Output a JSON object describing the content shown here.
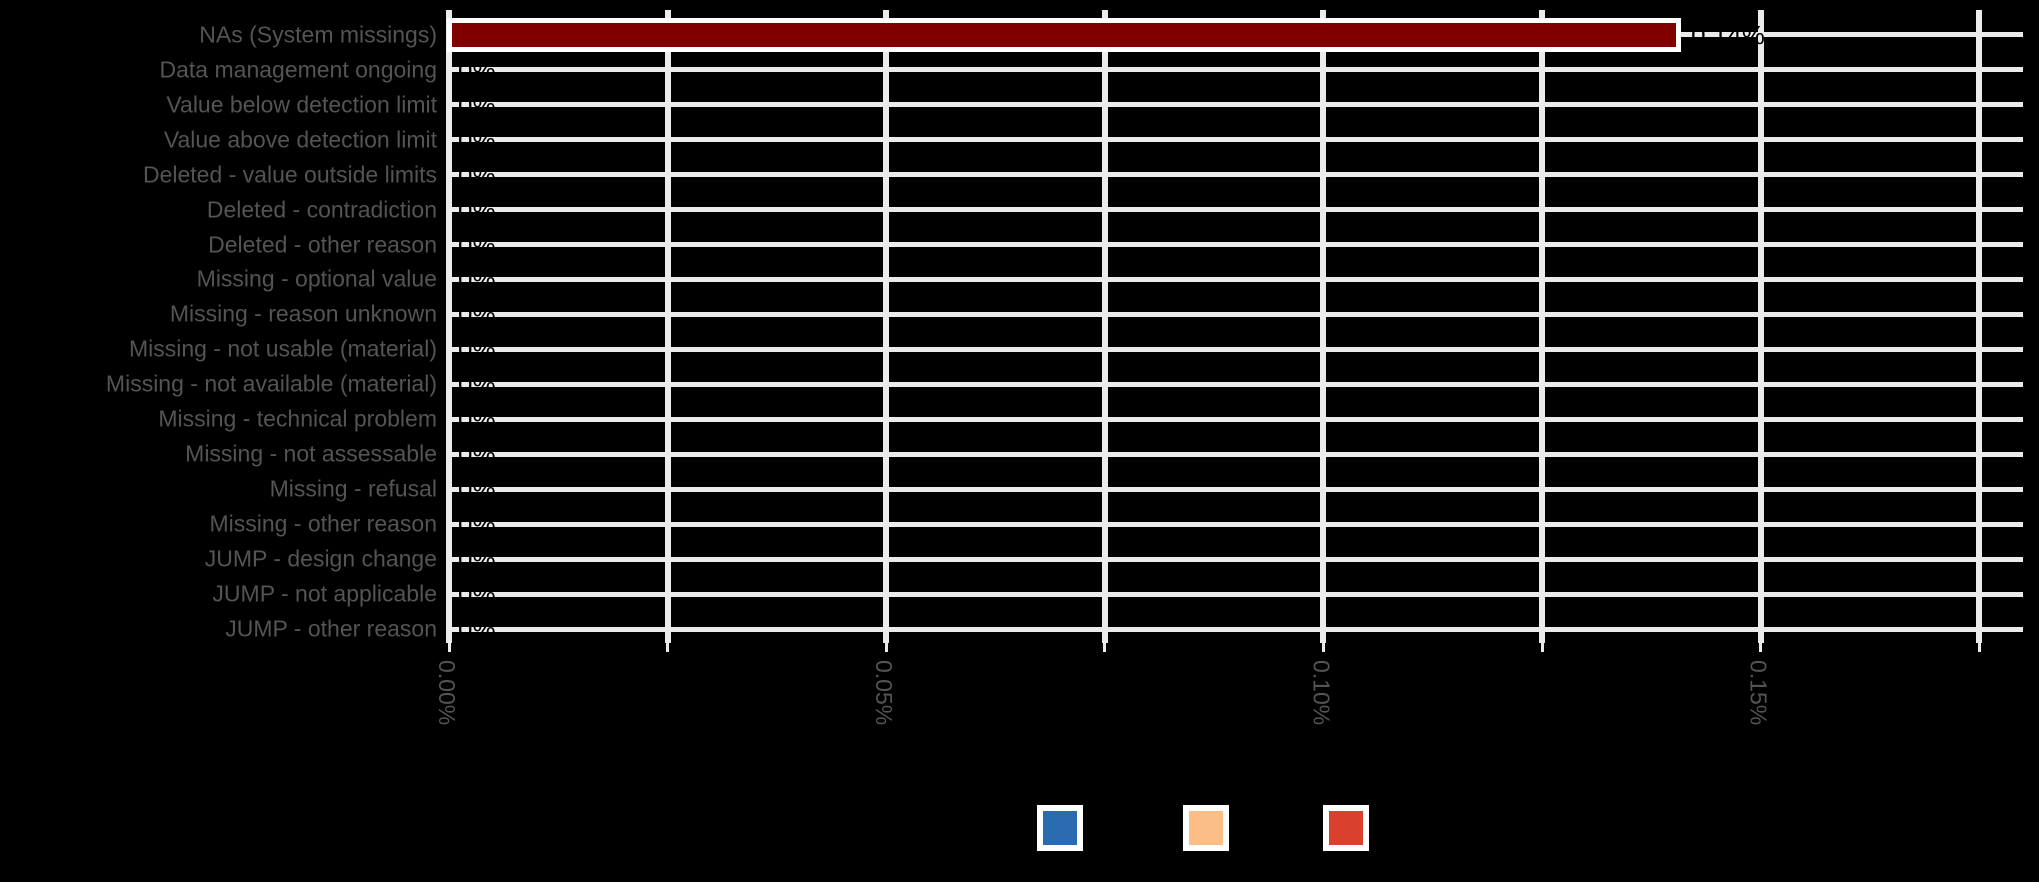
{
  "chart_data": {
    "type": "bar",
    "orientation": "horizontal",
    "title": "",
    "categories": [
      "NAs (System missings)",
      "Data management ongoing",
      "Value below detection limit",
      "Value above detection limit",
      "Deleted - value outside limits",
      "Deleted - contradiction",
      "Deleted - other reason",
      "Missing - optional value",
      "Missing - reason unknown",
      "Missing - not usable (material)",
      "Missing - not available (material)",
      "Missing - technical problem",
      "Missing - not assessable",
      "Missing - refusal",
      "Missing - other reason",
      "JUMP - design change",
      "JUMP - not applicable",
      "JUMP - other reason"
    ],
    "values_percent": [
      0.14,
      0,
      0,
      0,
      0,
      0,
      0,
      0,
      0,
      0,
      0,
      0,
      0,
      0,
      0,
      0,
      0,
      0
    ],
    "value_labels": [
      "0.14%",
      "0%",
      "0%",
      "0%",
      "0%",
      "0%",
      "0%",
      "0%",
      "0%",
      "0%",
      "0%",
      "0%",
      "0%",
      "0%",
      "0%",
      "0%",
      "0%",
      "0%"
    ],
    "xlabel": "",
    "ylabel": "",
    "x_axis": {
      "min_percent": 0,
      "max_percent": 0.18,
      "tick_values_percent": [
        0,
        0.025,
        0.05,
        0.075,
        0.1,
        0.125,
        0.15,
        0.175
      ],
      "labeled_tick_values_percent": [
        0,
        0.05,
        0.1,
        0.15
      ],
      "labeled_tick_texts": [
        "0.00%",
        "0.05%",
        "0.10%",
        "0.15%"
      ]
    },
    "grid": true,
    "colors": {
      "background": "#000000",
      "bar_fill": "#800000",
      "bar_border": "#ffffff",
      "gridline": "#ebebeb",
      "axis_text": "#545454",
      "value_text": "#000000"
    },
    "legend": {
      "position": "bottom",
      "swatch_colors": [
        "#2b6cb1",
        "#fcbe87",
        "#d9402e"
      ],
      "swatch_names": [
        "blue-legend-swatch",
        "peach-legend-swatch",
        "red-legend-swatch"
      ]
    }
  }
}
